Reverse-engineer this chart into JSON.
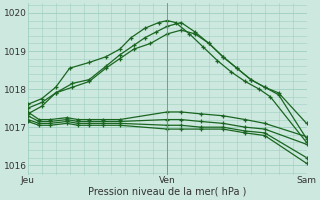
{
  "bg_color": "#cde8df",
  "grid_color": "#9ecfbf",
  "line_color": "#1a6620",
  "xlabel": "Pression niveau de la mer( hPa )",
  "xtick_labels": [
    "Jeu",
    "Ven",
    "Sam"
  ],
  "xtick_positions": [
    0.0,
    0.5,
    1.0
  ],
  "ylim": [
    1015.75,
    1020.25
  ],
  "yticks": [
    1016,
    1017,
    1018,
    1019,
    1020
  ],
  "figsize": [
    3.2,
    2.0
  ],
  "dpi": 100,
  "series": [
    {
      "x": [
        0.0,
        0.04,
        0.08,
        0.14,
        0.18,
        0.22,
        0.27,
        0.33,
        0.5,
        0.55,
        0.62,
        0.7,
        0.78,
        0.85,
        1.0
      ],
      "y": [
        1017.15,
        1017.05,
        1017.05,
        1017.1,
        1017.05,
        1017.05,
        1017.05,
        1017.05,
        1016.95,
        1016.95,
        1016.95,
        1016.95,
        1016.85,
        1016.78,
        1016.05
      ]
    },
    {
      "x": [
        0.0,
        0.04,
        0.08,
        0.14,
        0.18,
        0.22,
        0.27,
        0.33,
        0.5,
        0.55,
        0.62,
        0.7,
        0.78,
        0.85,
        1.0
      ],
      "y": [
        1017.2,
        1017.1,
        1017.1,
        1017.15,
        1017.1,
        1017.1,
        1017.1,
        1017.1,
        1017.05,
        1017.05,
        1017.0,
        1017.0,
        1016.9,
        1016.85,
        1016.2
      ]
    },
    {
      "x": [
        0.0,
        0.04,
        0.08,
        0.14,
        0.18,
        0.22,
        0.27,
        0.33,
        0.5,
        0.55,
        0.62,
        0.7,
        0.78,
        0.85,
        1.0
      ],
      "y": [
        1017.3,
        1017.15,
        1017.15,
        1017.2,
        1017.15,
        1017.15,
        1017.15,
        1017.15,
        1017.2,
        1017.2,
        1017.15,
        1017.1,
        1017.0,
        1016.95,
        1016.55
      ]
    },
    {
      "x": [
        0.0,
        0.04,
        0.08,
        0.14,
        0.18,
        0.22,
        0.27,
        0.33,
        0.5,
        0.55,
        0.62,
        0.7,
        0.78,
        0.85,
        1.0
      ],
      "y": [
        1017.4,
        1017.2,
        1017.2,
        1017.25,
        1017.2,
        1017.2,
        1017.2,
        1017.2,
        1017.4,
        1017.4,
        1017.35,
        1017.3,
        1017.2,
        1017.1,
        1016.75
      ]
    },
    {
      "x": [
        0.0,
        0.05,
        0.1,
        0.16,
        0.22,
        0.28,
        0.33,
        0.38,
        0.44,
        0.5,
        0.55,
        0.6,
        0.65,
        0.7,
        0.75,
        0.8,
        0.85,
        0.9,
        1.0
      ],
      "y": [
        1017.35,
        1017.55,
        1017.9,
        1018.05,
        1018.2,
        1018.55,
        1018.8,
        1019.05,
        1019.2,
        1019.45,
        1019.55,
        1019.45,
        1019.2,
        1018.85,
        1018.55,
        1018.25,
        1018.05,
        1017.9,
        1017.1
      ]
    },
    {
      "x": [
        0.0,
        0.05,
        0.1,
        0.16,
        0.22,
        0.28,
        0.33,
        0.38,
        0.42,
        0.46,
        0.5,
        0.55,
        0.6,
        0.65,
        0.7,
        0.75,
        0.8,
        0.85,
        0.9,
        1.0
      ],
      "y": [
        1017.5,
        1017.65,
        1017.9,
        1018.15,
        1018.25,
        1018.6,
        1018.9,
        1019.15,
        1019.35,
        1019.5,
        1019.65,
        1019.75,
        1019.5,
        1019.2,
        1018.85,
        1018.55,
        1018.25,
        1018.05,
        1017.85,
        1016.7
      ]
    },
    {
      "x": [
        0.0,
        0.05,
        0.1,
        0.15,
        0.22,
        0.28,
        0.33,
        0.37,
        0.42,
        0.47,
        0.5,
        0.53,
        0.58,
        0.63,
        0.68,
        0.73,
        0.78,
        0.83,
        0.87,
        1.0
      ],
      "y": [
        1017.6,
        1017.75,
        1018.05,
        1018.55,
        1018.7,
        1018.85,
        1019.05,
        1019.35,
        1019.6,
        1019.75,
        1019.8,
        1019.75,
        1019.45,
        1019.1,
        1018.75,
        1018.45,
        1018.2,
        1018.0,
        1017.8,
        1016.6
      ]
    }
  ]
}
